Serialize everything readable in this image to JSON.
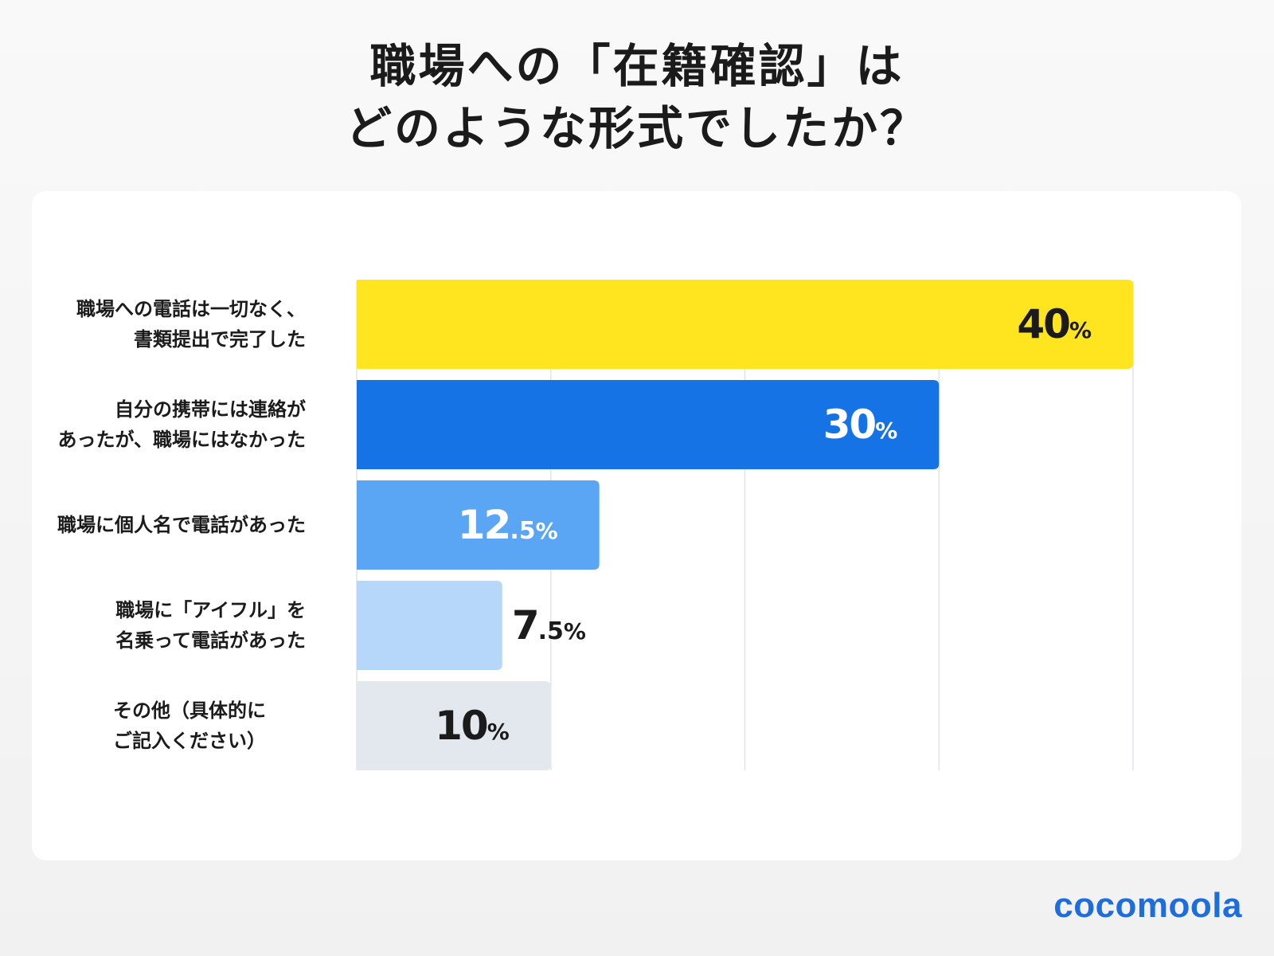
{
  "title": {
    "line1": "職場への「在籍確認」は",
    "line2": "どのような形式でしたか？"
  },
  "brand": "cocomoola",
  "chart_data": {
    "type": "bar",
    "orientation": "horizontal",
    "title": "職場への「在籍確認」はどのような形式でしたか？",
    "unit": "%",
    "xlim": [
      0,
      40
    ],
    "grid": true,
    "categories": [
      {
        "lines": [
          "職場への電話は一切なく、",
          "書類提出で完了した"
        ],
        "value": 40,
        "int": "40",
        "dec": "",
        "color": "#ffe520",
        "label_color": "#1b1b1b",
        "label_inside": true
      },
      {
        "lines": [
          "自分の携帯には連絡が",
          "あったが、職場にはなかった"
        ],
        "value": 30,
        "int": "30",
        "dec": "",
        "color": "#1673e6",
        "label_color": "#ffffff",
        "label_inside": true
      },
      {
        "lines": [
          "職場に個人名で電話があった"
        ],
        "value": 12.5,
        "int": "12",
        "dec": ".5",
        "color": "#5aa6f4",
        "label_color": "#ffffff",
        "label_inside": true
      },
      {
        "lines": [
          "職場に「アイフル」を",
          "名乗って電話があった"
        ],
        "value": 7.5,
        "int": "7",
        "dec": ".5",
        "color": "#b6d7fa",
        "label_color": "#1b1b1b",
        "label_inside": false
      },
      {
        "lines": [
          "その他（具体的に",
          "ご記入ください）"
        ],
        "value": 10,
        "int": "10",
        "dec": "",
        "color": "#e3e8ef",
        "label_color": "#1b1b1b",
        "label_inside": true
      }
    ]
  }
}
